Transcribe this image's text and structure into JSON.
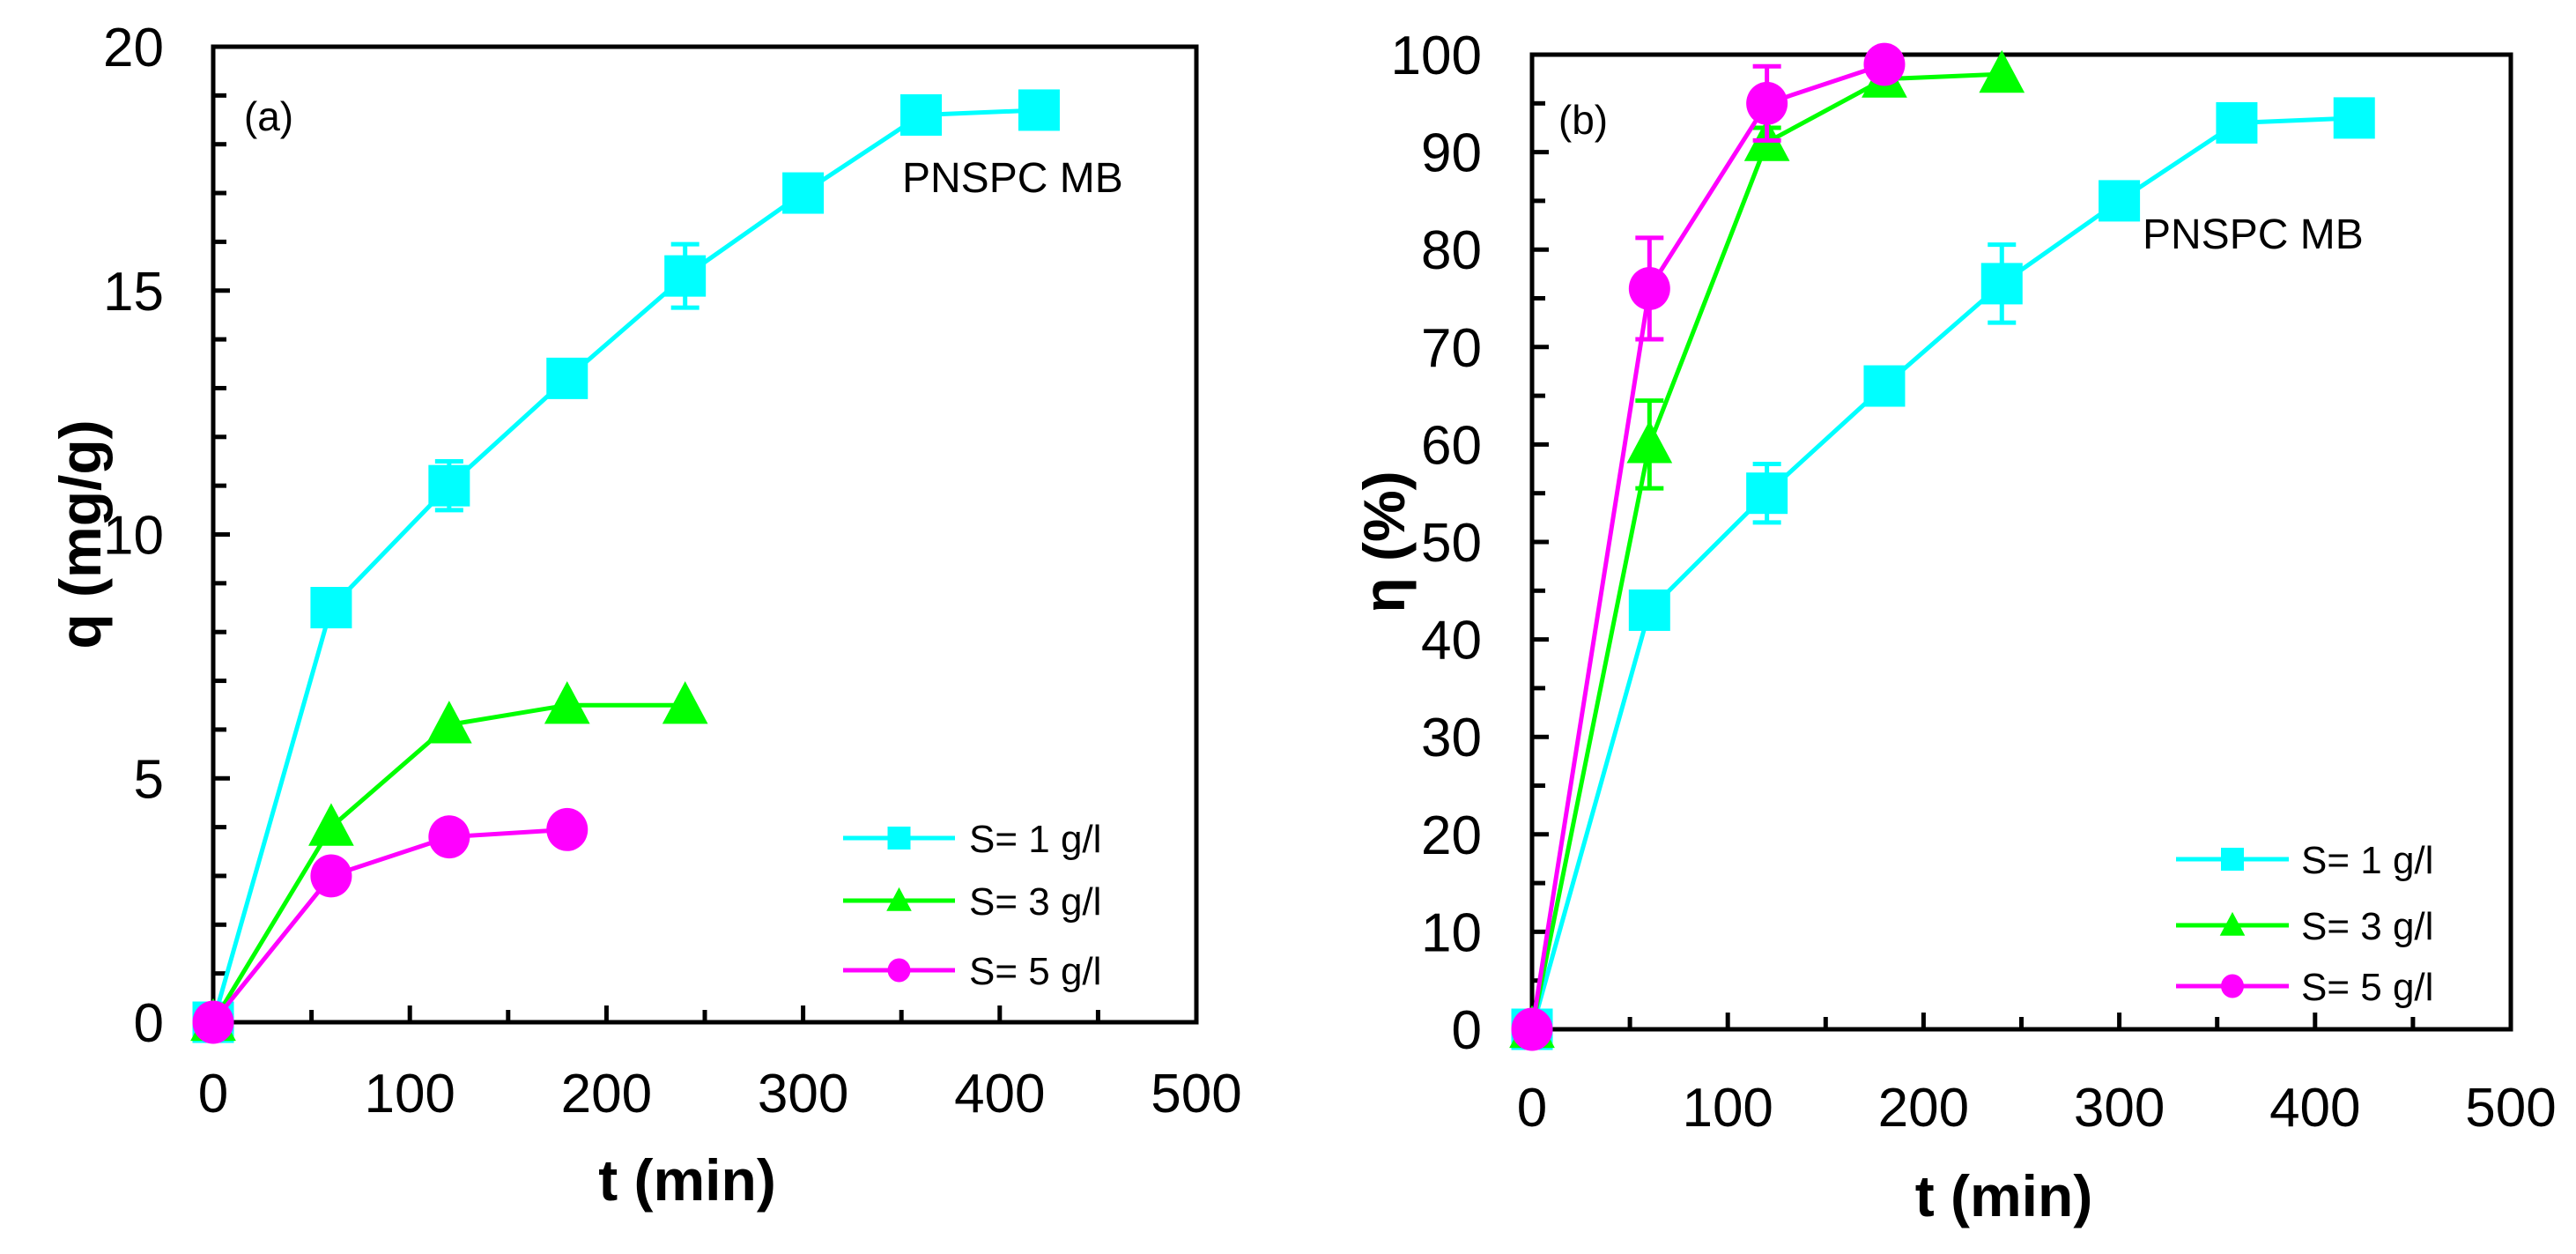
{
  "chart_data": [
    {
      "type": "line",
      "panel_label": "(a)",
      "annotation": "PNSPC MB",
      "xlabel": "t (min)",
      "ylabel": "q (mg/g)",
      "xlim": [
        0,
        500
      ],
      "ylim": [
        0,
        20
      ],
      "xticks": [
        0,
        100,
        200,
        300,
        400,
        500
      ],
      "yticks": [
        0,
        5,
        10,
        15,
        20
      ],
      "legend_position": "bottom-right",
      "series": [
        {
          "name": "S= 1 g/l",
          "color": "#00ffff",
          "marker": "square",
          "x": [
            0,
            60,
            120,
            180,
            240,
            300,
            360,
            420
          ],
          "y": [
            0,
            8.5,
            11.0,
            13.2,
            15.3,
            17.0,
            18.6,
            18.7
          ],
          "err": [
            0,
            0.1,
            0.5,
            0.1,
            0.65,
            0.1,
            0.1,
            0.15
          ]
        },
        {
          "name": "S= 3 g/l",
          "color": "#00ff00",
          "marker": "triangle",
          "x": [
            0,
            60,
            120,
            180,
            240
          ],
          "y": [
            0,
            4.0,
            6.1,
            6.5,
            6.5
          ],
          "err": [
            0,
            0.1,
            0.1,
            0.1,
            0.1
          ]
        },
        {
          "name": "S= 5 g/l",
          "color": "#ff00ff",
          "marker": "circle",
          "x": [
            0,
            60,
            120,
            180
          ],
          "y": [
            0,
            3.0,
            3.8,
            3.95
          ],
          "err": [
            0,
            0.05,
            0.05,
            0.05
          ]
        }
      ]
    },
    {
      "type": "line",
      "panel_label": "(b)",
      "annotation": "PNSPC MB",
      "xlabel": "t (min)",
      "ylabel": "η (%)",
      "xlim": [
        0,
        500
      ],
      "ylim": [
        0,
        100
      ],
      "xticks": [
        0,
        100,
        200,
        300,
        400,
        500
      ],
      "yticks": [
        0,
        10,
        20,
        30,
        40,
        50,
        60,
        70,
        80,
        90,
        100
      ],
      "legend_position": "bottom-right",
      "series": [
        {
          "name": "S= 1 g/l",
          "color": "#00ffff",
          "marker": "square",
          "x": [
            0,
            60,
            120,
            180,
            240,
            300,
            360,
            420
          ],
          "y": [
            0,
            43,
            55,
            66,
            76.5,
            85,
            93,
            93.5
          ],
          "err": [
            0,
            1.5,
            3,
            0.5,
            4,
            0.5,
            0.5,
            1.5
          ]
        },
        {
          "name": "S= 3 g/l",
          "color": "#00ff00",
          "marker": "triangle",
          "x": [
            0,
            60,
            120,
            180,
            240
          ],
          "y": [
            0,
            60,
            91,
            97.5,
            98
          ],
          "err": [
            0,
            4.5,
            1.5,
            0.3,
            0.3
          ]
        },
        {
          "name": "S= 5 g/l",
          "color": "#ff00ff",
          "marker": "circle",
          "x": [
            0,
            60,
            120,
            180
          ],
          "y": [
            0,
            76,
            95,
            99
          ],
          "err": [
            0,
            5.2,
            3.8,
            0.3
          ]
        }
      ]
    }
  ]
}
